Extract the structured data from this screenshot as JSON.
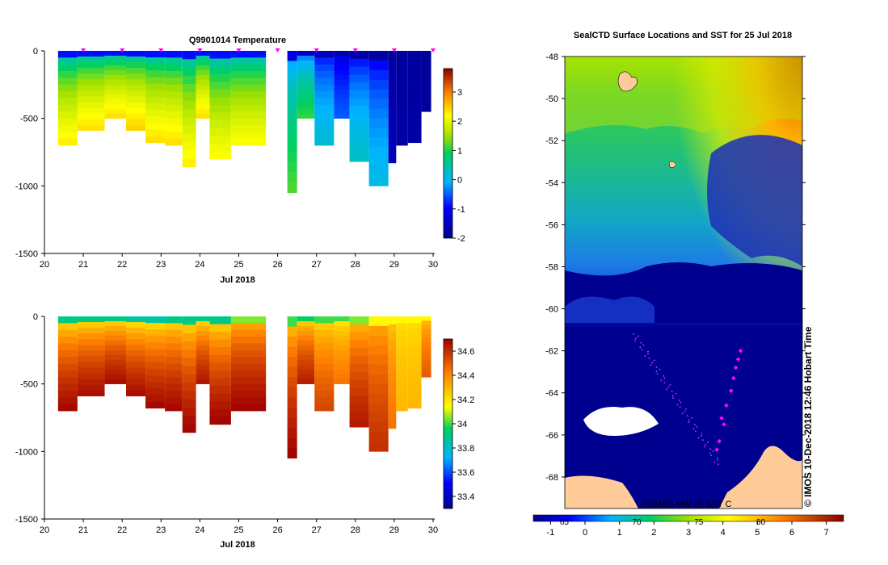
{
  "chart_data": [
    {
      "type": "heatmap",
      "title": "Q9901014  Temperature",
      "xlabel": "Jul 2018",
      "ylabel": "",
      "xlim": [
        20,
        30
      ],
      "ylim": [
        -1500,
        0
      ],
      "x_ticks": [
        "20",
        "21",
        "22",
        "23",
        "24",
        "25",
        "26",
        "27",
        "28",
        "29",
        "30"
      ],
      "y_ticks": [
        "0",
        "-500",
        "-1000",
        "-1500"
      ],
      "colorbar": {
        "min": -2,
        "max": 3.8,
        "ticks": [
          "3",
          "2",
          "1",
          "0",
          "-1",
          "-2"
        ]
      },
      "profile_markers": [
        21,
        22,
        23,
        24,
        25,
        26,
        27,
        28,
        29,
        30
      ],
      "profiles": [
        {
          "x0": 20.35,
          "x1": 20.85,
          "depth": -700,
          "surface": -0.9,
          "deep": 2.3
        },
        {
          "x0": 20.85,
          "x1": 21.55,
          "depth": -590,
          "surface": -0.9,
          "deep": 2.4
        },
        {
          "x0": 21.55,
          "x1": 22.1,
          "depth": -500,
          "surface": -0.9,
          "deep": 2.4
        },
        {
          "x0": 22.1,
          "x1": 22.6,
          "depth": -590,
          "surface": -0.9,
          "deep": 2.5
        },
        {
          "x0": 22.6,
          "x1": 23.1,
          "depth": -680,
          "surface": -0.9,
          "deep": 2.4
        },
        {
          "x0": 23.1,
          "x1": 23.55,
          "depth": -700,
          "surface": -0.9,
          "deep": 2.4
        },
        {
          "x0": 23.55,
          "x1": 23.9,
          "depth": -860,
          "surface": -0.9,
          "deep": 2.3
        },
        {
          "x0": 23.9,
          "x1": 24.25,
          "depth": -500,
          "surface": -0.9,
          "deep": 2.4
        },
        {
          "x0": 24.25,
          "x1": 24.8,
          "depth": -800,
          "surface": -0.9,
          "deep": 2.2
        },
        {
          "x0": 24.8,
          "x1": 25.7,
          "depth": -700,
          "surface": -0.9,
          "deep": 2.2
        },
        {
          "x0": 26.25,
          "x1": 26.5,
          "depth": -1050,
          "surface": -1.2,
          "deep": 1.2
        },
        {
          "x0": 26.5,
          "x1": 26.95,
          "depth": -500,
          "surface": -1.5,
          "deep": 1.1
        },
        {
          "x0": 26.95,
          "x1": 27.45,
          "depth": -700,
          "surface": -1.6,
          "deep": 0.2
        },
        {
          "x0": 27.45,
          "x1": 27.85,
          "depth": -500,
          "surface": -1.8,
          "deep": -0.5
        },
        {
          "x0": 27.85,
          "x1": 28.35,
          "depth": -820,
          "surface": -1.8,
          "deep": 0.3
        },
        {
          "x0": 28.35,
          "x1": 28.85,
          "depth": -1000,
          "surface": -1.8,
          "deep": 0.1
        },
        {
          "x0": 28.85,
          "x1": 29.05,
          "depth": -830,
          "surface": -1.9,
          "deep": -1.6
        },
        {
          "x0": 29.05,
          "x1": 29.35,
          "depth": -700,
          "surface": -1.9,
          "deep": -1.8
        },
        {
          "x0": 29.35,
          "x1": 29.7,
          "depth": -680,
          "surface": -1.9,
          "deep": -1.8
        },
        {
          "x0": 29.7,
          "x1": 29.95,
          "depth": -450,
          "surface": -1.9,
          "deep": -1.9
        }
      ]
    },
    {
      "type": "heatmap",
      "title": "",
      "xlabel": "Jul 2018",
      "ylabel": "",
      "xlim": [
        20,
        30
      ],
      "ylim": [
        -1500,
        0
      ],
      "x_ticks": [
        "20",
        "21",
        "22",
        "23",
        "24",
        "25",
        "26",
        "27",
        "28",
        "29",
        "30"
      ],
      "y_ticks": [
        "0",
        "-500",
        "-1000",
        "-1500"
      ],
      "colorbar": {
        "min": 33.3,
        "max": 34.7,
        "ticks": [
          "34.6",
          "34.4",
          "34.2",
          "34",
          "33.8",
          "33.6",
          "33.4"
        ]
      },
      "profiles": [
        {
          "x0": 20.35,
          "x1": 20.85,
          "depth": -700,
          "surface": 33.9,
          "deep": 34.69
        },
        {
          "x0": 20.85,
          "x1": 21.55,
          "depth": -590,
          "surface": 33.9,
          "deep": 34.68
        },
        {
          "x0": 21.55,
          "x1": 22.1,
          "depth": -500,
          "surface": 33.9,
          "deep": 34.68
        },
        {
          "x0": 22.1,
          "x1": 22.6,
          "depth": -590,
          "surface": 33.85,
          "deep": 34.68
        },
        {
          "x0": 22.6,
          "x1": 23.1,
          "depth": -680,
          "surface": 33.85,
          "deep": 34.69
        },
        {
          "x0": 23.1,
          "x1": 23.55,
          "depth": -700,
          "surface": 33.9,
          "deep": 34.69
        },
        {
          "x0": 23.55,
          "x1": 23.9,
          "depth": -860,
          "surface": 33.9,
          "deep": 34.7
        },
        {
          "x0": 23.9,
          "x1": 24.25,
          "depth": -500,
          "surface": 33.9,
          "deep": 34.66
        },
        {
          "x0": 24.25,
          "x1": 24.8,
          "depth": -800,
          "surface": 33.9,
          "deep": 34.7
        },
        {
          "x0": 24.8,
          "x1": 25.7,
          "depth": -700,
          "surface": 34.05,
          "deep": 34.7
        },
        {
          "x0": 26.25,
          "x1": 26.5,
          "depth": -1050,
          "surface": 34.0,
          "deep": 34.7
        },
        {
          "x0": 26.5,
          "x1": 26.95,
          "depth": -500,
          "surface": 33.95,
          "deep": 34.64
        },
        {
          "x0": 26.95,
          "x1": 27.45,
          "depth": -700,
          "surface": 34.0,
          "deep": 34.55
        },
        {
          "x0": 27.45,
          "x1": 27.85,
          "depth": -500,
          "surface": 34.0,
          "deep": 34.45
        },
        {
          "x0": 27.85,
          "x1": 28.35,
          "depth": -820,
          "surface": 34.05,
          "deep": 34.65
        },
        {
          "x0": 28.35,
          "x1": 28.85,
          "depth": -1000,
          "surface": 34.15,
          "deep": 34.6
        },
        {
          "x0": 28.85,
          "x1": 29.05,
          "depth": -830,
          "surface": 34.15,
          "deep": 34.45
        },
        {
          "x0": 29.05,
          "x1": 29.35,
          "depth": -700,
          "surface": 34.15,
          "deep": 34.3
        },
        {
          "x0": 29.35,
          "x1": 29.7,
          "depth": -680,
          "surface": 34.15,
          "deep": 34.3
        },
        {
          "x0": 29.7,
          "x1": 29.95,
          "depth": -450,
          "surface": 34.15,
          "deep": 34.5
        }
      ]
    },
    {
      "type": "heatmap",
      "title": "SealCTD Surface Locations and SST for 25 Jul 2018",
      "xlabel": "",
      "ylabel": "",
      "ylim": [
        -69.5,
        -48
      ],
      "y_ticks": [
        "-48",
        "-50",
        "-52",
        "-54",
        "-56",
        "-58",
        "-60",
        "-62",
        "-64",
        "-66",
        "-68"
      ],
      "colorbar": {
        "min": -1.5,
        "max": 7.5,
        "ticks": [
          "-1",
          "0",
          "1",
          "2",
          "3",
          "4",
          "5",
          "6",
          "7"
        ]
      },
      "colorbar_overlay_labels": [
        "65",
        "70",
        "75",
        "80"
      ],
      "side_label": "© IMOS 10-Dec-2018 12:46 Hobart Time",
      "bottom_label": "REMSS MW IR SST C",
      "track_points": [
        {
          "lat": -62.0,
          "lon_frac": 0.74
        },
        {
          "lat": -62.4,
          "lon_frac": 0.73
        },
        {
          "lat": -62.8,
          "lon_frac": 0.72
        },
        {
          "lat": -63.3,
          "lon_frac": 0.71
        },
        {
          "lat": -63.9,
          "lon_frac": 0.7
        },
        {
          "lat": -64.6,
          "lon_frac": 0.68
        },
        {
          "lat": -65.2,
          "lon_frac": 0.66
        },
        {
          "lat": -65.5,
          "lon_frac": 0.67
        },
        {
          "lat": -66.3,
          "lon_frac": 0.65
        },
        {
          "lat": -66.7,
          "lon_frac": 0.64
        }
      ]
    }
  ]
}
